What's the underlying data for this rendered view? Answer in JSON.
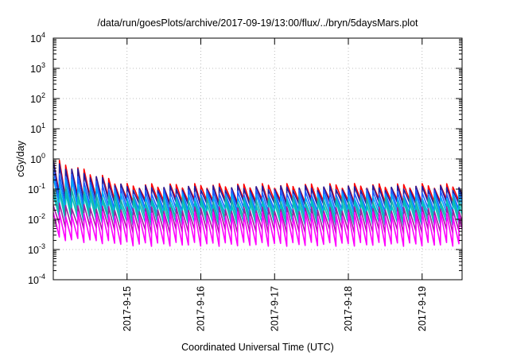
{
  "chart_data": {
    "type": "line",
    "title": "/data/run/goesPlots/archive/2017-09-19/13:00/flux/../bryn/5daysMars.plot",
    "xlabel": "Coordinated Universal Time (UTC)",
    "ylabel": "cGy/day",
    "yscale": "log",
    "ylim": [
      0.0001,
      10000
    ],
    "y_ticks": [
      {
        "value": 0.0001,
        "base": "10",
        "exp": "-4"
      },
      {
        "value": 0.001,
        "base": "10",
        "exp": "-3"
      },
      {
        "value": 0.01,
        "base": "10",
        "exp": "-2"
      },
      {
        "value": 0.1,
        "base": "10",
        "exp": "-1"
      },
      {
        "value": 1,
        "base": "10",
        "exp": "0"
      },
      {
        "value": 10,
        "base": "10",
        "exp": "1"
      },
      {
        "value": 100,
        "base": "10",
        "exp": "2"
      },
      {
        "value": 1000,
        "base": "10",
        "exp": "3"
      },
      {
        "value": 10000,
        "base": "10",
        "exp": "4"
      }
    ],
    "xlim": [
      "2017-09-14T00:00",
      "2017-09-19T13:00"
    ],
    "x_ticks": [
      "2017-9-15",
      "2017-9-16",
      "2017-9-17",
      "2017-9-18",
      "2017-9-19"
    ],
    "grid": true,
    "legend": "none",
    "sawtooth_period_hours": 2,
    "series": [
      {
        "color": "#ff0000",
        "peak_start": 0.9,
        "peak": 0.13,
        "trough": 0.04
      },
      {
        "color": "#2020a0",
        "peak_start": 0.75,
        "peak": 0.11,
        "trough": 0.032
      },
      {
        "color": "#2060ff",
        "peak_start": 0.4,
        "peak": 0.08,
        "trough": 0.02
      },
      {
        "color": "#00a8ff",
        "peak_start": 0.25,
        "peak": 0.06,
        "trough": 0.014
      },
      {
        "color": "#20b0a0",
        "peak_start": 0.12,
        "peak": 0.045,
        "trough": 0.01
      },
      {
        "color": "#00c0c0",
        "peak_start": 0.08,
        "peak": 0.035,
        "trough": 0.007
      },
      {
        "color": "#a020a0",
        "peak_start": 0.03,
        "peak": 0.022,
        "trough": 0.004
      },
      {
        "color": "#ff00ff",
        "peak_start": 0.015,
        "peak": 0.015,
        "trough": 0.0015
      }
    ]
  }
}
